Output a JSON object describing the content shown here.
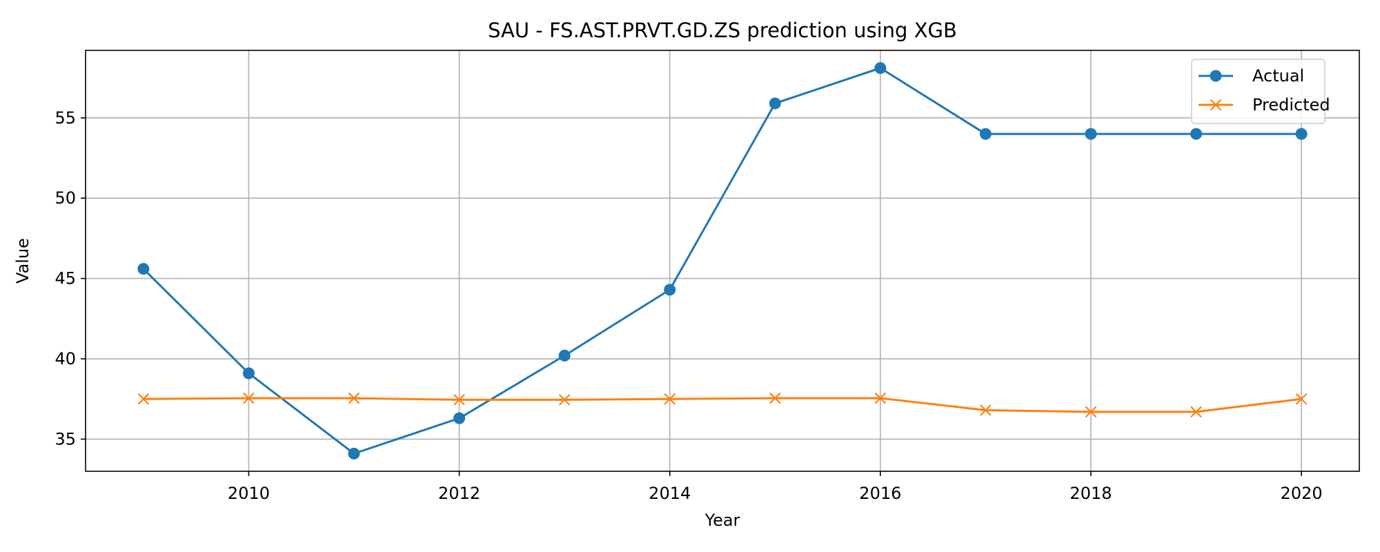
{
  "chart_data": {
    "type": "line",
    "title": "SAU - FS.AST.PRVT.GD.ZS prediction using XGB",
    "xlabel": "Year",
    "ylabel": "Value",
    "x": [
      2009,
      2010,
      2011,
      2012,
      2013,
      2014,
      2015,
      2016,
      2017,
      2018,
      2019,
      2020
    ],
    "xlim": [
      2008.45,
      2020.55
    ],
    "ylim": [
      33.0,
      59.2
    ],
    "xticks": [
      2010,
      2012,
      2014,
      2016,
      2018,
      2020
    ],
    "yticks": [
      35,
      40,
      45,
      50,
      55
    ],
    "grid": true,
    "legend_position": "top-right",
    "series": [
      {
        "name": "Actual",
        "color": "#1f77b4",
        "marker": "circle",
        "values": [
          45.6,
          39.1,
          34.1,
          36.3,
          40.2,
          44.3,
          55.9,
          58.1,
          54.0,
          54.0,
          54.0,
          54.0
        ]
      },
      {
        "name": "Predicted",
        "color": "#ff7f0e",
        "marker": "x",
        "values": [
          37.5,
          37.55,
          37.55,
          37.45,
          37.45,
          37.5,
          37.55,
          37.55,
          36.8,
          36.7,
          36.7,
          37.5
        ]
      }
    ]
  }
}
